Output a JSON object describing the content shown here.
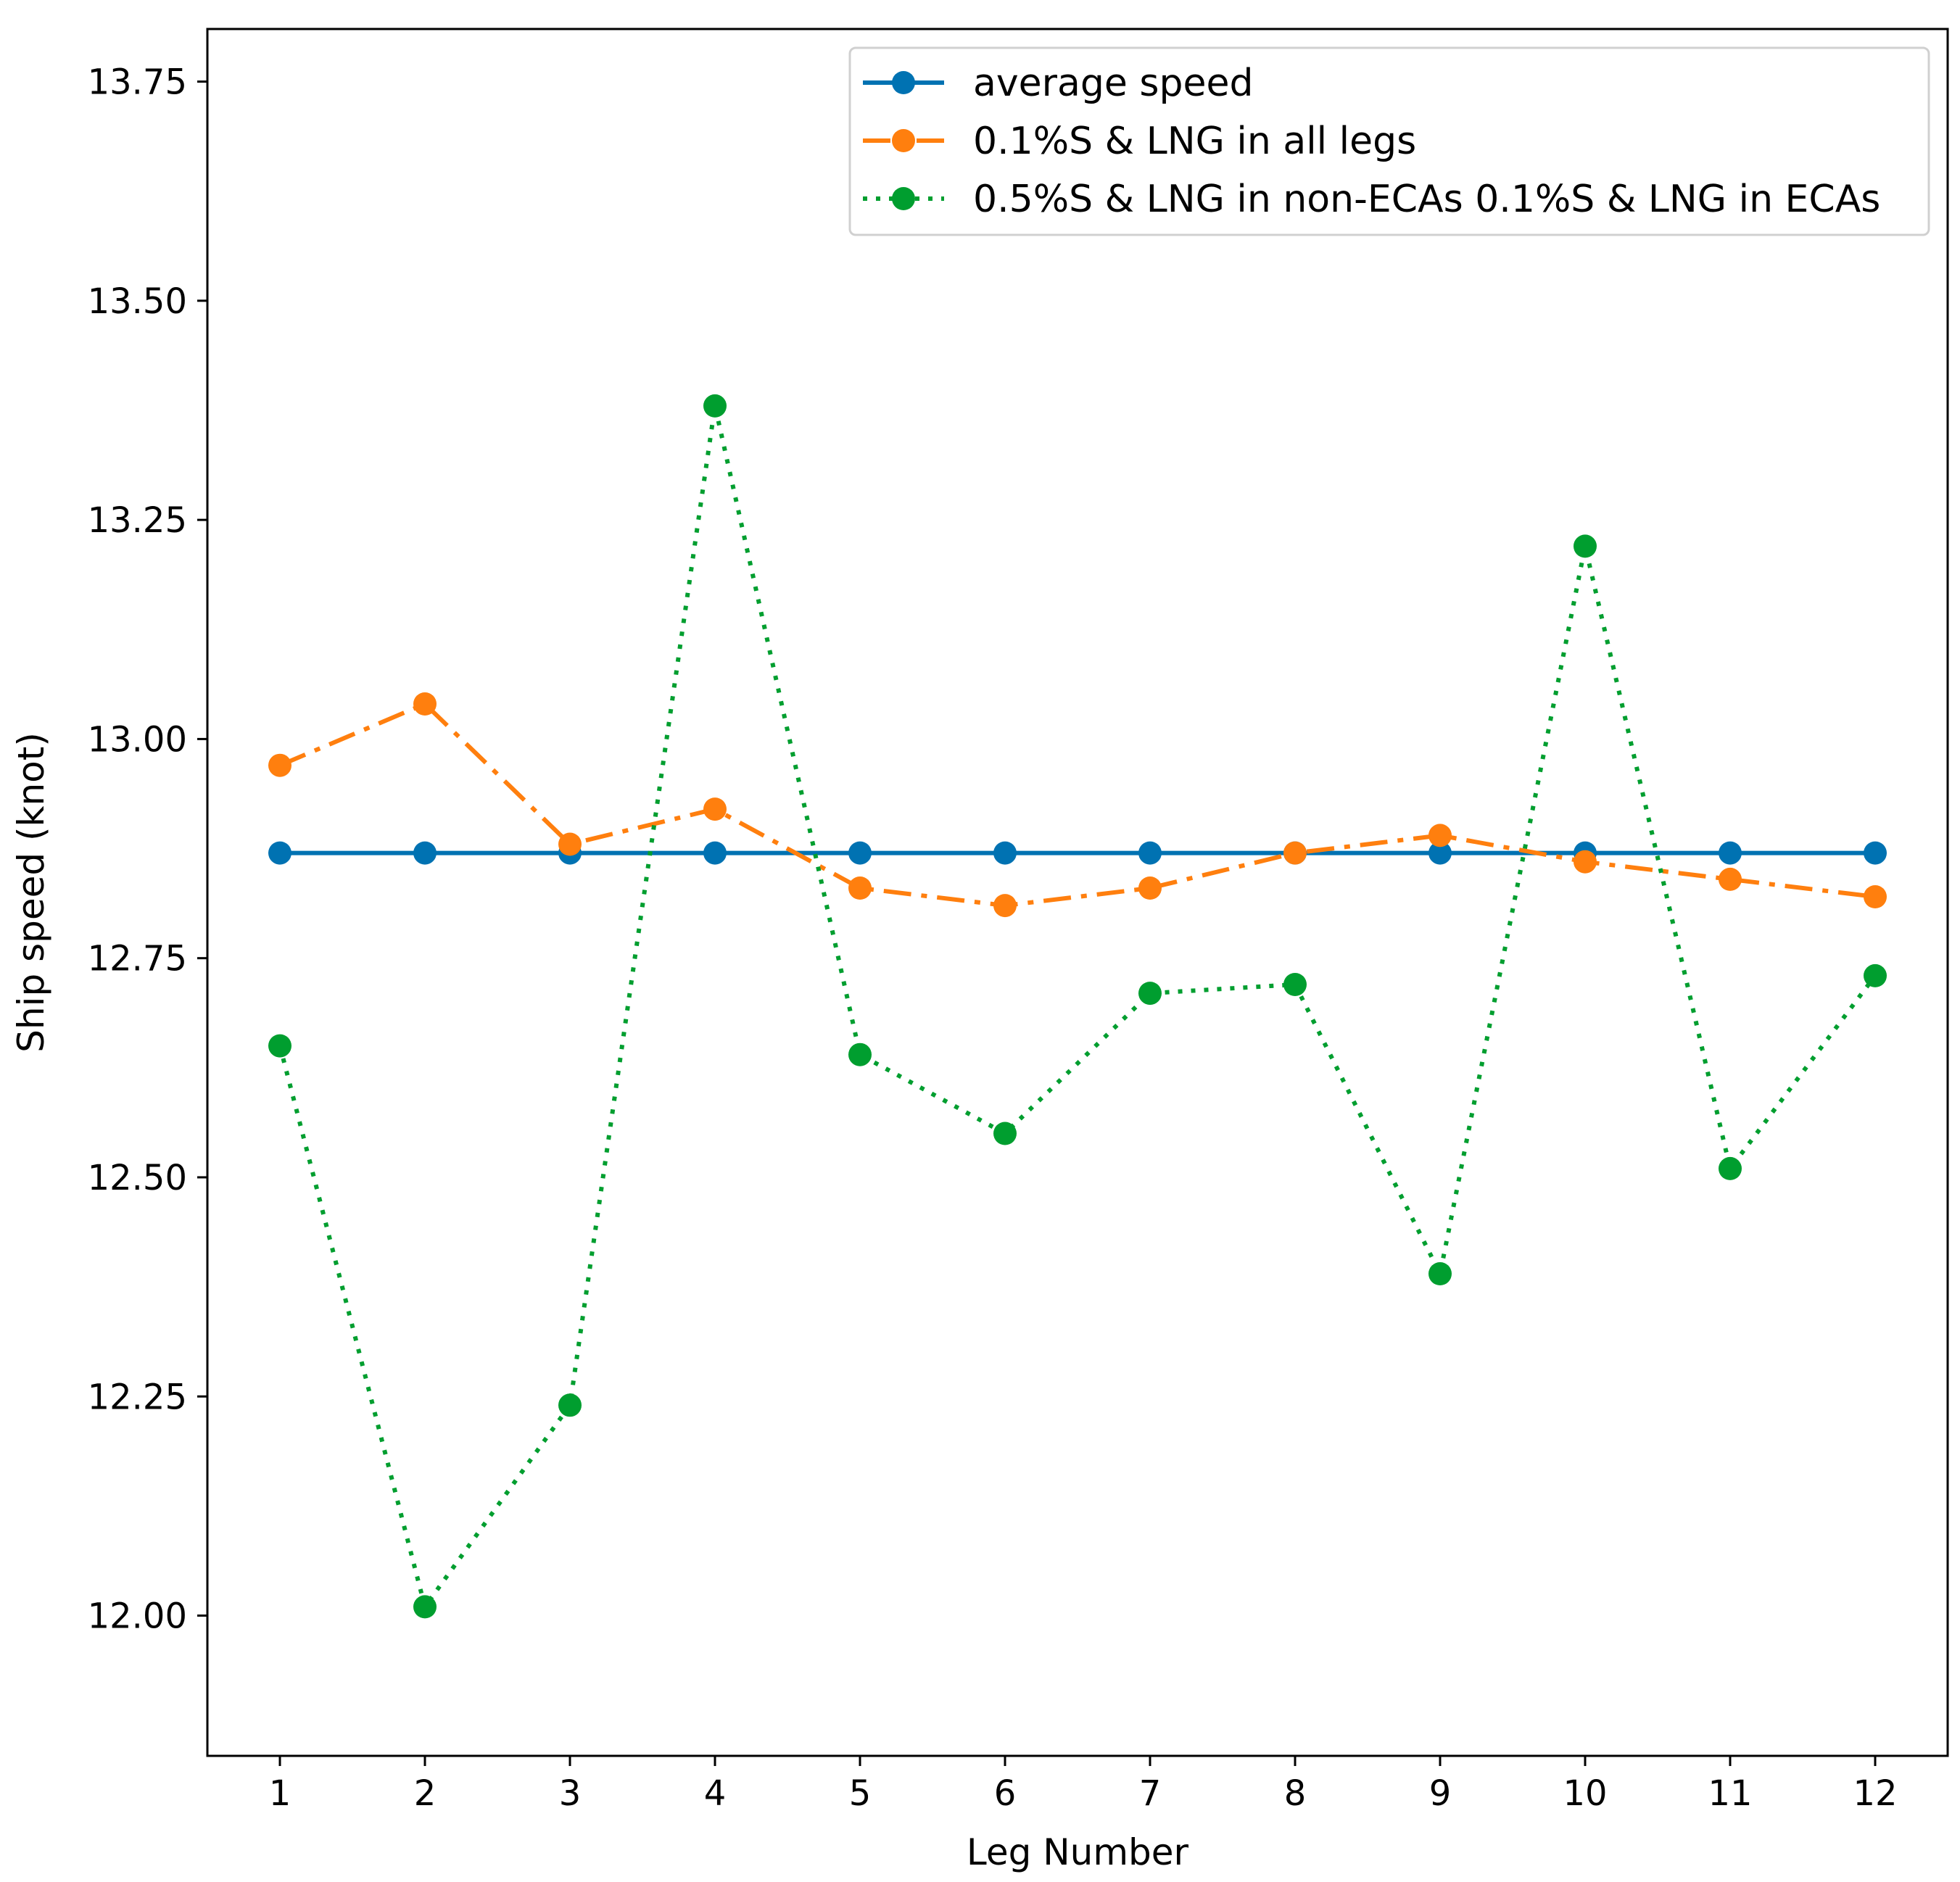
{
  "chart_data": {
    "type": "line",
    "title": "",
    "xlabel": "Leg Number",
    "ylabel": "Ship speed (knot)",
    "x": [
      1,
      2,
      3,
      4,
      5,
      6,
      7,
      8,
      9,
      10,
      11,
      12
    ],
    "xticks": [
      "1",
      "2",
      "3",
      "4",
      "5",
      "6",
      "7",
      "8",
      "9",
      "10",
      "11",
      "12"
    ],
    "xlim": [
      0.5,
      12.5
    ],
    "yticks": [
      "12.00",
      "12.25",
      "12.50",
      "12.75",
      "13.00",
      "13.25",
      "13.50",
      "13.75"
    ],
    "ytick_values": [
      12.0,
      12.25,
      12.5,
      12.75,
      13.0,
      13.25,
      13.5,
      13.75
    ],
    "ylim": [
      11.84,
      13.81
    ],
    "grid": false,
    "legend_position": "top-right",
    "series": [
      {
        "name": "average speed",
        "color": "#0072b2",
        "style": "solid",
        "values": [
          12.87,
          12.87,
          12.87,
          12.87,
          12.87,
          12.87,
          12.87,
          12.87,
          12.87,
          12.87,
          12.87,
          12.87
        ]
      },
      {
        "name": "0.1%S & LNG in all legs",
        "color": "#ff7f0e",
        "style": "dashdot",
        "values": [
          12.97,
          13.04,
          12.88,
          12.92,
          12.83,
          12.81,
          12.83,
          12.87,
          12.89,
          12.86,
          12.84,
          12.82
        ]
      },
      {
        "name": "0.5%S & LNG in non-ECAs 0.1%S & LNG in ECAs",
        "color": "#009e2f",
        "style": "dotted",
        "values": [
          12.65,
          12.01,
          12.24,
          13.38,
          12.64,
          12.55,
          12.71,
          12.72,
          12.39,
          13.22,
          12.51,
          12.73
        ]
      }
    ]
  }
}
